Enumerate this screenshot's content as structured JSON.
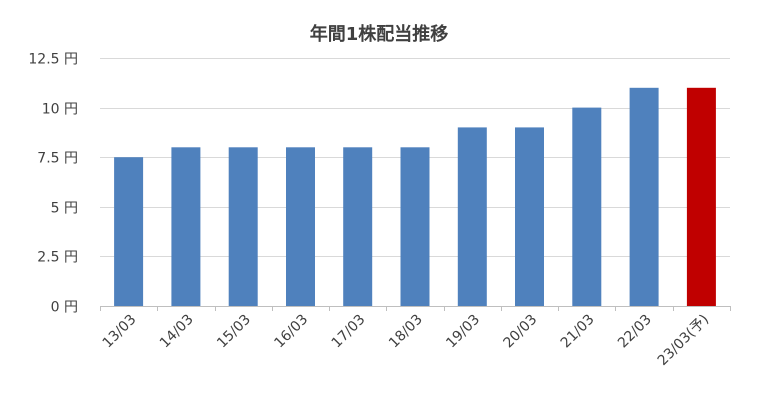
{
  "chart_data": {
    "type": "bar",
    "title": "年間1株配当推移",
    "xlabel": "",
    "ylabel": "",
    "categories": [
      "13/03",
      "14/03",
      "15/03",
      "16/03",
      "17/03",
      "18/03",
      "19/03",
      "20/03",
      "21/03",
      "22/03",
      "23/03(予)"
    ],
    "values": [
      7.5,
      8,
      8,
      8,
      8,
      8,
      9,
      9,
      10,
      11,
      11
    ],
    "ylim": [
      0,
      12.5
    ],
    "yticks": [
      0,
      2.5,
      5,
      7.5,
      10,
      12.5
    ],
    "ytick_labels": [
      "0 円",
      "2.5 円",
      "5 円",
      "7.5 円",
      "10 円",
      "12.5 円"
    ],
    "grid": true,
    "legend": "none",
    "bar_color": "#4f81bd",
    "forecast_color": "#c00000",
    "highlight_index": 10,
    "grid_color": "#d9d9d9",
    "axis_color": "#bfbfbf"
  }
}
